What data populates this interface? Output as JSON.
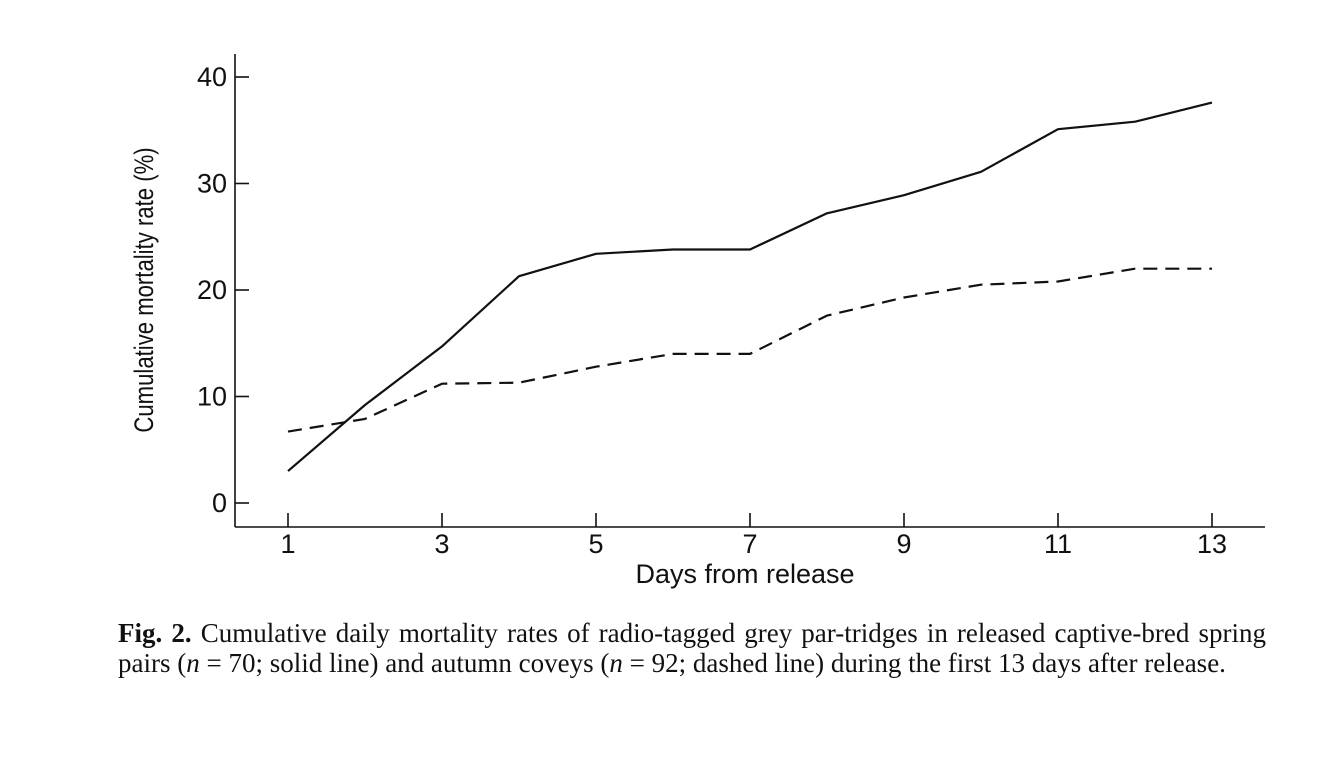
{
  "chart_data": {
    "type": "line",
    "x": [
      1,
      2,
      3,
      4,
      5,
      6,
      7,
      8,
      9,
      10,
      11,
      12,
      13
    ],
    "series": [
      {
        "style": "solid",
        "values": [
          3,
          9.2,
          14.7,
          21.3,
          23.4,
          23.8,
          23.8,
          27.2,
          28.9,
          31.1,
          35.1,
          35.8,
          37.6
        ]
      },
      {
        "style": "dashed",
        "values": [
          6.7,
          7.9,
          11.2,
          11.3,
          12.8,
          14.0,
          14.0,
          17.6,
          19.3,
          20.5,
          20.8,
          22.0,
          22.0
        ]
      }
    ],
    "xlabel": "Days from release",
    "ylabel": "Cumulative mortality rate (%)",
    "xlim": [
      1,
      13
    ],
    "ylim": [
      0,
      40
    ],
    "xticks": [
      "1",
      "3",
      "5",
      "7",
      "9",
      "11",
      "13"
    ],
    "yticks": [
      "0",
      "10",
      "20",
      "30",
      "40"
    ],
    "grid": false,
    "legend": "none"
  },
  "caption": {
    "label": "Fig. 2.",
    "part1": " Cumulative daily mortality rates of radio-tagged grey par-tridges in released captive-bred spring pairs (",
    "n_symbol_1": "n",
    "part2": " = 70; solid line) and autumn coveys (",
    "n_symbol_2": "n",
    "part3": " = 92; dashed line) during the first 13 days after release."
  }
}
